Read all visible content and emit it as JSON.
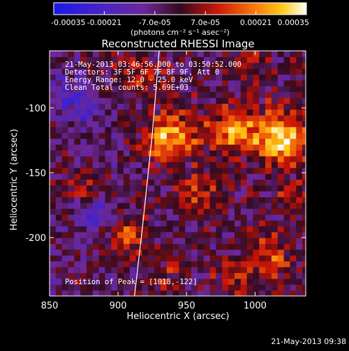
{
  "chart_data": {
    "type": "heatmap",
    "title": "Reconstructed RHESSI Image",
    "xlabel": "Heliocentric X (arcsec)",
    "ylabel": "Heliocentric Y (arcsec)",
    "xlim": [
      850,
      1037
    ],
    "ylim": [
      -245,
      -56
    ],
    "x_ticks": [
      850,
      900,
      950,
      1000
    ],
    "y_ticks": [
      -100,
      -150,
      -200
    ],
    "colorbar": {
      "label": "(photons cm⁻² s⁻¹ asec⁻²)",
      "range": [
        -0.00035,
        0.00035
      ],
      "ticks": [
        "-0.00035",
        "-0.00021",
        "-7.0e-05",
        "7.0e-05",
        "0.00021",
        "0.00035"
      ],
      "colormap": "blue-purple-red-yellow-white"
    },
    "annotations": [
      "21-May-2013 03:46:56.000 to 03:50:52.000",
      "Detectors: 3F 5F 6F 7F 8F 9F, Att 0",
      "Energy Range: 12.0 - 25.0 keV",
      "Clean     Total counts: 5.69E+03"
    ],
    "peak_label": "Position of Peak = [1018,-122]",
    "peak": {
      "x": 1018,
      "y": -122
    },
    "sources": [
      {
        "x": 1018,
        "y": -122,
        "intensity": 0.00035,
        "spread": 14
      },
      {
        "x": 938,
        "y": -122,
        "intensity": 0.00029,
        "spread": 13
      },
      {
        "x": 983,
        "y": -117,
        "intensity": 0.00026,
        "spread": 12
      },
      {
        "x": 905,
        "y": -198,
        "intensity": 0.00018,
        "spread": 10
      },
      {
        "x": 960,
        "y": -168,
        "intensity": 0.00014,
        "spread": 12
      },
      {
        "x": 1010,
        "y": -215,
        "intensity": 0.00016,
        "spread": 12
      },
      {
        "x": 875,
        "y": -158,
        "intensity": 0.00012,
        "spread": 9
      },
      {
        "x": 1030,
        "y": -170,
        "intensity": 0.00013,
        "spread": 10
      },
      {
        "x": 915,
        "y": -75,
        "intensity": 0.00013,
        "spread": 12
      },
      {
        "x": 935,
        "y": -228,
        "intensity": 0.00011,
        "spread": 9
      },
      {
        "x": 985,
        "y": -232,
        "intensity": 0.00012,
        "spread": 10
      },
      {
        "x": 870,
        "y": -95,
        "intensity": -0.00016,
        "spread": 14
      },
      {
        "x": 880,
        "y": -185,
        "intensity": -0.00012,
        "spread": 11
      },
      {
        "x": 1000,
        "y": -68,
        "intensity": 0.00012,
        "spread": 10
      }
    ],
    "limb": [
      [
        930,
        -56
      ],
      [
        925,
        -120
      ],
      [
        918,
        -190
      ],
      [
        912,
        -245
      ]
    ]
  },
  "footer_timestamp": "21-May-2013 09:38"
}
